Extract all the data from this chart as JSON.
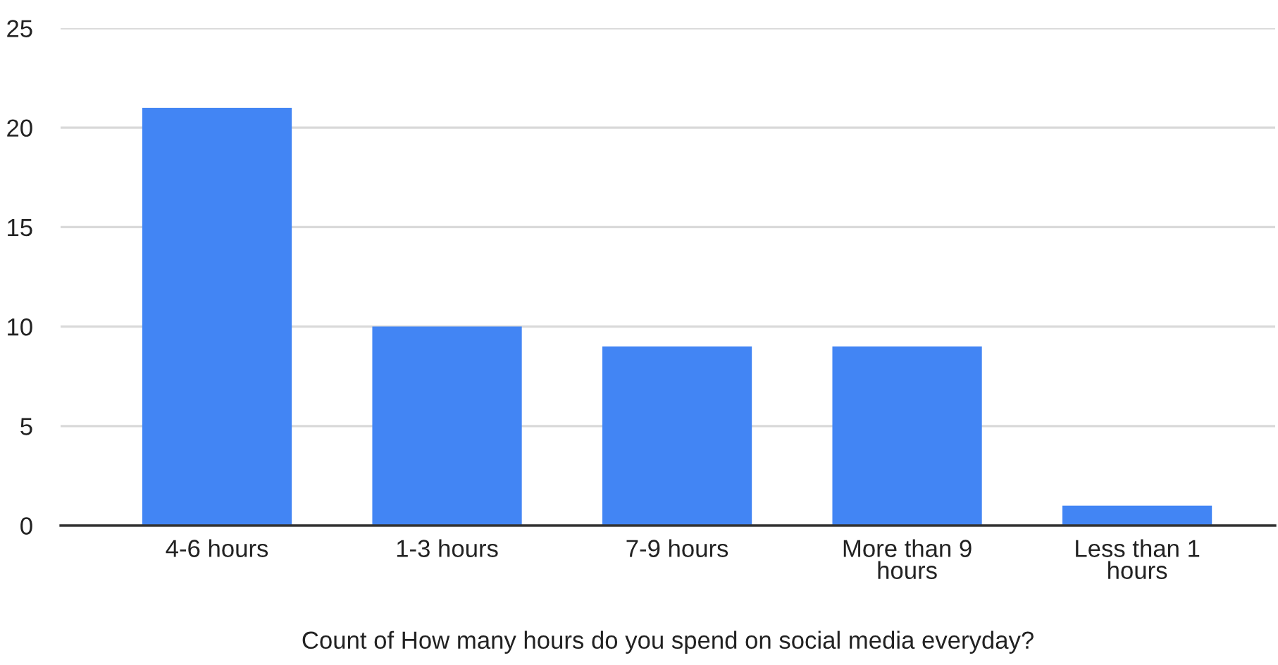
{
  "chart_data": {
    "type": "bar",
    "xlabel": "Count of How many hours do you spend on social media everyday?",
    "categories": [
      "4-6 hours",
      "1-3 hours",
      "7-9 hours",
      "More than 9 hours",
      "Less than 1 hours"
    ],
    "values": [
      21,
      10,
      9,
      9,
      1
    ],
    "color": "#4285f4",
    "ylim": [
      0,
      25
    ],
    "yticks": [
      0,
      5,
      10,
      15,
      20,
      25
    ],
    "grid": "y"
  }
}
